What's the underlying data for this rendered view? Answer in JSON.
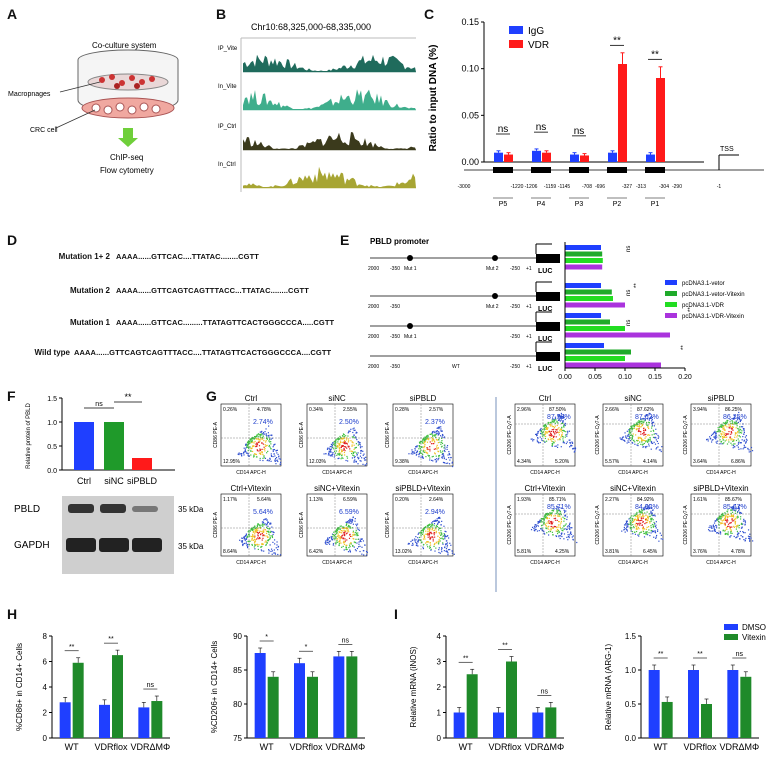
{
  "panel_labels": {
    "A": "A",
    "B": "B",
    "C": "C",
    "D": "D",
    "E": "E",
    "F": "F",
    "G": "G",
    "H": "H",
    "I": "I"
  },
  "panelA": {
    "coculture": "Co-culture system",
    "macrophages": "Macropnages",
    "crc": "CRC cell",
    "chip": "ChIP-seq",
    "flow": "Flow cytometry"
  },
  "panelB": {
    "title": "Chr10:68,325,000-68,335,000",
    "tracks": [
      "IP_Vite",
      "In_Vite",
      "IP_Ctrl",
      "In_Ctrl"
    ],
    "colors": [
      "#1f6b5c",
      "#3fae8c",
      "#3b3a1c",
      "#a7a533"
    ]
  },
  "panelC": {
    "legend": [
      "IgG",
      "VDR"
    ],
    "colors": {
      "IgG": "#1f3fff",
      "VDR": "#ff1a1a"
    },
    "ylabel": "Ratio to input DNA (%)",
    "yticks": [
      "0.00",
      "0.05",
      "0.10",
      "0.15"
    ],
    "sig": [
      "ns",
      "ns",
      "ns",
      "**",
      "**"
    ],
    "positions": [
      "-3000",
      "-1220",
      "-1206",
      "-1159",
      "-1145",
      "-708",
      "-696",
      "-327",
      "-313",
      "-304",
      "-290",
      "-1"
    ],
    "regions": [
      "P5",
      "P4",
      "P3",
      "P2",
      "P1"
    ],
    "tss": "TSS"
  },
  "chart_data": [
    {
      "type": "bar",
      "panel": "C",
      "categories": [
        "P5",
        "P4",
        "P3",
        "P2",
        "P1"
      ],
      "series": [
        {
          "name": "IgG",
          "values": [
            0.01,
            0.012,
            0.008,
            0.01,
            0.008
          ]
        },
        {
          "name": "VDR",
          "values": [
            0.008,
            0.01,
            0.007,
            0.105,
            0.09
          ]
        }
      ],
      "ylabel": "Ratio to input DNA (%)",
      "ylim": [
        0,
        0.15
      ]
    },
    {
      "type": "bar",
      "panel": "E",
      "categories": [
        "Mutation 1+2",
        "Mutation 2",
        "Mutation 1",
        "Wild type"
      ],
      "series": [
        {
          "name": "pcDNA3.1-vetor",
          "values": [
            0.06,
            0.06,
            0.06,
            0.065
          ]
        },
        {
          "name": "pcDNA3.1-vetor-Vitexin",
          "values": [
            0.062,
            0.078,
            0.075,
            0.11
          ]
        },
        {
          "name": "pcDNA3.1-VDR",
          "values": [
            0.063,
            0.08,
            0.1,
            0.1
          ]
        },
        {
          "name": "pcDNA3.1-VDR-Vitexin",
          "values": [
            0.062,
            0.1,
            0.175,
            0.16
          ]
        }
      ],
      "ylim": [
        0,
        0.2
      ]
    },
    {
      "type": "bar",
      "panel": "F",
      "categories": [
        "Ctrl",
        "siNC",
        "siPBLD"
      ],
      "values": [
        1.0,
        1.0,
        0.25
      ],
      "ylabel": "Relative protein of PBLD",
      "ylim": [
        0,
        1.5
      ]
    },
    {
      "type": "bar",
      "panel": "H1",
      "categories": [
        "WT",
        "VDRflox",
        "VDRΔMΦ"
      ],
      "series": [
        {
          "name": "DMSO",
          "values": [
            2.8,
            2.6,
            2.4
          ]
        },
        {
          "name": "Vitexin",
          "values": [
            5.9,
            6.5,
            2.9
          ]
        }
      ],
      "ylabel": "%CD86+ in CD14+ Cells",
      "ylim": [
        0,
        8
      ]
    },
    {
      "type": "bar",
      "panel": "H2",
      "categories": [
        "WT",
        "VDRflox",
        "VDRΔMΦ"
      ],
      "series": [
        {
          "name": "DMSO",
          "values": [
            87.5,
            86.0,
            87.0
          ]
        },
        {
          "name": "Vitexin",
          "values": [
            84.0,
            84.0,
            87.0
          ]
        }
      ],
      "ylabel": "%CD206+ in CD14+ Cells",
      "ylim": [
        75,
        90
      ]
    },
    {
      "type": "bar",
      "panel": "I1",
      "categories": [
        "WT",
        "VDRflox",
        "VDRΔMΦ"
      ],
      "series": [
        {
          "name": "DMSO",
          "values": [
            1.0,
            1.0,
            1.0
          ]
        },
        {
          "name": "Vitexin",
          "values": [
            2.5,
            3.0,
            1.2
          ]
        }
      ],
      "ylabel": "Relative mRNA (iNOS)",
      "ylim": [
        0,
        4
      ]
    },
    {
      "type": "bar",
      "panel": "I2",
      "categories": [
        "WT",
        "VDRflox",
        "VDRΔMΦ"
      ],
      "series": [
        {
          "name": "DMSO",
          "values": [
            1.0,
            1.0,
            1.0
          ]
        },
        {
          "name": "Vitexin",
          "values": [
            0.53,
            0.5,
            0.9
          ]
        }
      ],
      "ylabel": "Relative mRNA (ARG-1)",
      "ylim": [
        0,
        1.5
      ]
    }
  ],
  "panelD": {
    "rows": [
      {
        "label": "Mutation 1+ 2",
        "seq": "AAAA......GTTCAC....TTATAC........CGTT"
      },
      {
        "label": "Mutation 2",
        "seq": "AAAA......GTTCAGTCAGTTTACC...TTATAC........CGTT"
      },
      {
        "label": "Mutation 1",
        "seq": "AAAA......GTTCAC.........TTATAGTTCACTGGGCCCA.....CGTT"
      },
      {
        "label": "Wild type",
        "seq": "AAAA......GTTCAGTCAGTTTACC....TTATAGTTCACTGGGCCCA....CGTT"
      }
    ]
  },
  "panelE": {
    "title": "PBLD promoter",
    "luc": "LUC",
    "mut1": "Mut 1",
    "mut2": "Mut 2",
    "wt": "WT",
    "coords": [
      "2000",
      "-350",
      "-250",
      "+1"
    ],
    "legend": [
      "pcDNA3.1-vetor",
      "pcDNA3.1-vetor-Vitexin",
      "pcDNA3.1-VDR",
      "pcDNA3.1-VDR-Vitexin"
    ],
    "colors": [
      "#1f3fff",
      "#1faa2a",
      "#22dd22",
      "#aa33dd"
    ],
    "xticks": [
      "0.00",
      "0.05",
      "0.10",
      "0.15",
      "0.20"
    ],
    "sig": [
      "ns",
      "**",
      "ns",
      "**",
      "ns",
      "**"
    ]
  },
  "panelF": {
    "ylabel": "Relative protein of PBLD",
    "yticks": [
      "0.0",
      "0.5",
      "1.0",
      "1.5"
    ],
    "cats": [
      "Ctrl",
      "siNC",
      "siPBLD"
    ],
    "sig": [
      "ns",
      "**"
    ],
    "colors": [
      "#1f3fff",
      "#1f9a2a",
      "#ff1a1a"
    ],
    "blot": [
      "PBLD",
      "GAPDH"
    ],
    "kda": [
      "35 kDa",
      "35 kDa"
    ]
  },
  "panelG": {
    "left_titles": [
      "Ctrl",
      "siNC",
      "siPBLD",
      "Ctrl+Vitexin",
      "siNC+Vitexin",
      "siPBLD+Vitexin"
    ],
    "left_pct": [
      "2.74%",
      "2.50%",
      "2.37%",
      "5.64%",
      "6.59%",
      "2.94%"
    ],
    "left_q": [
      [
        "0.26%",
        "4.78%",
        "12.95%"
      ],
      [
        "0.34%",
        "2.55%",
        "12.03%"
      ],
      [
        "0.28%",
        "2.57%",
        "9.38%"
      ],
      [
        "1.17%",
        "5.64%",
        "8.64%"
      ],
      [
        "1.13%",
        "6.59%",
        "6.42%"
      ],
      [
        "0.20%",
        "2.64%",
        "13.02%"
      ]
    ],
    "left_y": "CD86 PE-A",
    "right_titles": [
      "Ctrl",
      "siNC",
      "siPBLD",
      "Ctrl+Vitexin",
      "siNC+Vitexin",
      "siPBLD+Vitexin"
    ],
    "right_pct": [
      "87.50%",
      "87.62%",
      "86.25%",
      "85.71%",
      "84.92%",
      "85.67%"
    ],
    "right_q": [
      [
        "2.96%",
        "87.50%",
        "4.34%",
        "5.20%"
      ],
      [
        "2.66%",
        "87.62%",
        "5.57%",
        "4.14%"
      ],
      [
        "3.94%",
        "86.25%",
        "3.64%",
        "6.86%"
      ],
      [
        "1.93%",
        "85.71%",
        "5.81%",
        "4.25%"
      ],
      [
        "2.27%",
        "84.92%",
        "3.81%",
        "6.45%"
      ],
      [
        "1.61%",
        "85.67%",
        "3.76%",
        "4.78%"
      ]
    ],
    "right_y": "CD206 PE-Cy7-A",
    "xlabel": "CD14 APC-H"
  },
  "panelH": {
    "ylabel1": "%CD86+ in CD14+ Cells",
    "yticks1": [
      "0",
      "2",
      "4",
      "6",
      "8"
    ],
    "ylabel2": "%CD206+ in CD14+ Cells",
    "yticks2": [
      "75",
      "80",
      "85",
      "90"
    ],
    "cats": [
      "WT",
      "VDRflox",
      "VDRΔMΦ"
    ],
    "sig1": [
      "**",
      "**",
      "ns"
    ],
    "sig2": [
      "*",
      "*",
      "ns"
    ]
  },
  "panelI": {
    "ylabel1": "Relative mRNA (iNOS)",
    "yticks1": [
      "0",
      "1",
      "2",
      "3",
      "4"
    ],
    "ylabel2": "Relative mRNA (ARG-1)",
    "yticks2": [
      "0.0",
      "0.5",
      "1.0",
      "1.5"
    ],
    "cats": [
      "WT",
      "VDRflox",
      "VDRΔMΦ"
    ],
    "sig1": [
      "**",
      "**",
      "ns"
    ],
    "sig2": [
      "**",
      "**",
      "ns"
    ],
    "legend": [
      "DMSO",
      "Vitexin"
    ],
    "colors": {
      "DMSO": "#1f3fff",
      "Vitexin": "#1f8a2a"
    }
  }
}
